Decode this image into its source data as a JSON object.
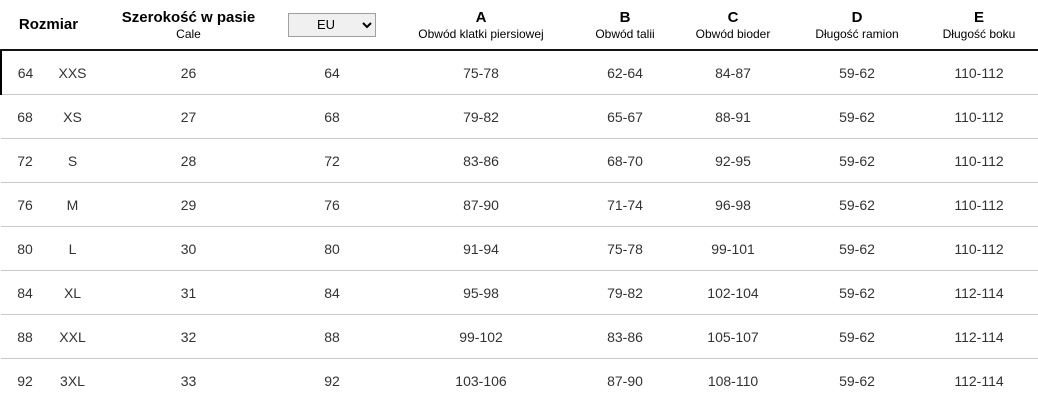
{
  "colors": {
    "header_line": "#151515",
    "row_divider": "#c9c9c9",
    "cell_text": "#333333",
    "select_background": "#f0f0f0",
    "select_border": "#a0a0a0"
  },
  "table": {
    "header": {
      "rozmiar_label": "Rozmiar",
      "waist": {
        "label": "Szerokość w pasie",
        "sub": "Cale"
      },
      "unit_select": {
        "selected": "EU",
        "options": [
          "EU"
        ]
      },
      "measures": [
        {
          "code": "A",
          "label": "Obwód klatki piersiowej"
        },
        {
          "code": "B",
          "label": "Obwód talii"
        },
        {
          "code": "C",
          "label": "Obwód bioder"
        },
        {
          "code": "D",
          "label": "Długość ramion"
        },
        {
          "code": "E",
          "label": "Długość boku"
        }
      ]
    },
    "rows": [
      [
        "64",
        "XXS",
        "26",
        "64",
        "75-78",
        "62-64",
        "84-87",
        "59-62",
        "110-112"
      ],
      [
        "68",
        "XS",
        "27",
        "68",
        "79-82",
        "65-67",
        "88-91",
        "59-62",
        "110-112"
      ],
      [
        "72",
        "S",
        "28",
        "72",
        "83-86",
        "68-70",
        "92-95",
        "59-62",
        "110-112"
      ],
      [
        "76",
        "M",
        "29",
        "76",
        "87-90",
        "71-74",
        "96-98",
        "59-62",
        "110-112"
      ],
      [
        "80",
        "L",
        "30",
        "80",
        "91-94",
        "75-78",
        "99-101",
        "59-62",
        "110-112"
      ],
      [
        "84",
        "XL",
        "31",
        "84",
        "95-98",
        "79-82",
        "102-104",
        "59-62",
        "112-114"
      ],
      [
        "88",
        "XXL",
        "32",
        "88",
        "99-102",
        "83-86",
        "105-107",
        "59-62",
        "112-114"
      ],
      [
        "92",
        "3XL",
        "33",
        "92",
        "103-106",
        "87-90",
        "108-110",
        "59-62",
        "112-114"
      ]
    ]
  }
}
